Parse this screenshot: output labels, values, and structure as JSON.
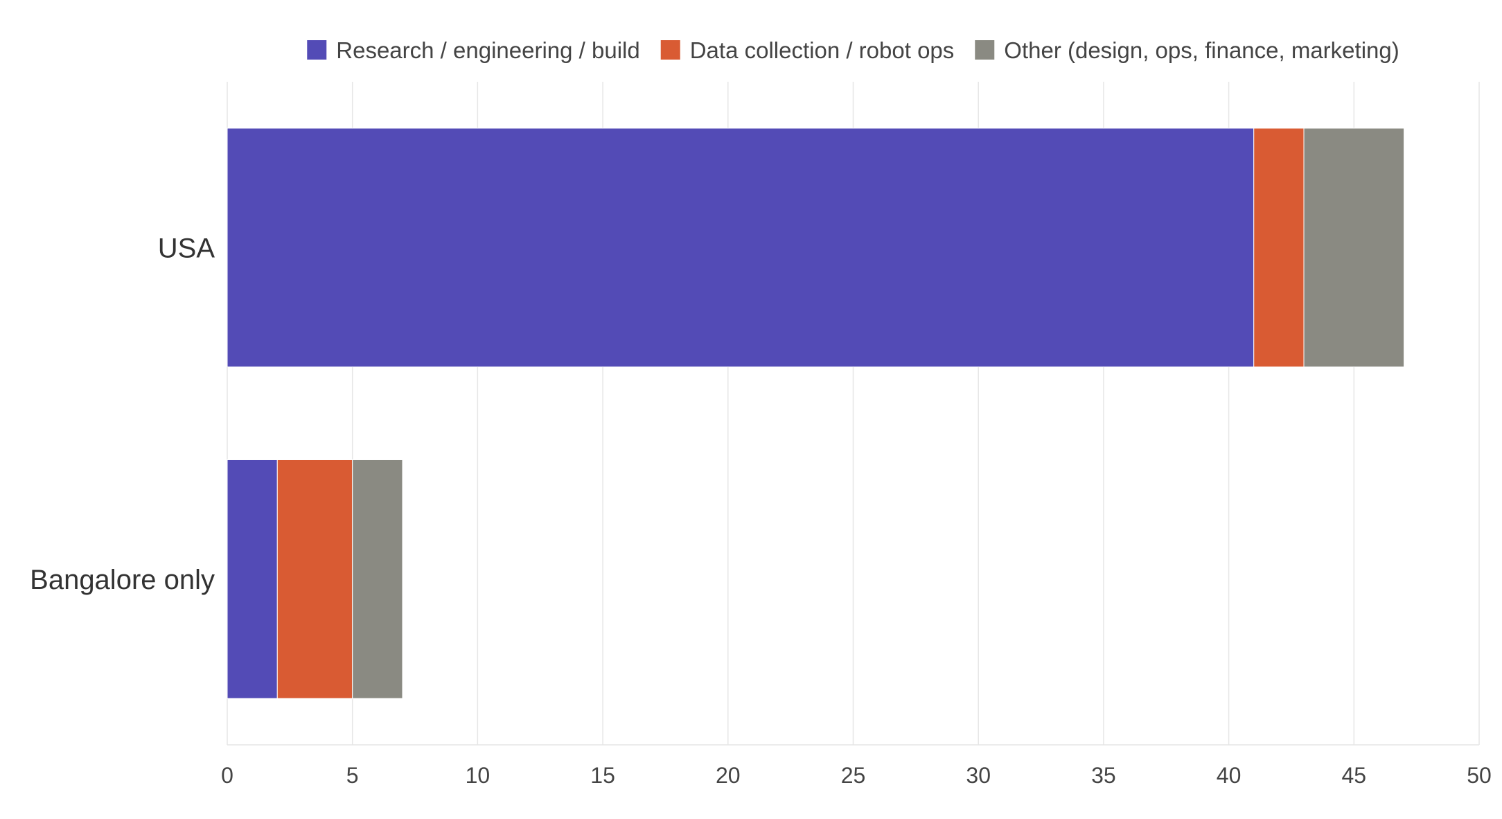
{
  "chart_data": {
    "type": "bar",
    "orientation": "horizontal",
    "stacked": true,
    "title": "",
    "xlabel": "",
    "ylabel": "",
    "categories": [
      "USA",
      "Bangalore only"
    ],
    "series": [
      {
        "name": "Research / engineering / build",
        "color": "#534bb6",
        "values": [
          41,
          2
        ]
      },
      {
        "name": "Data collection / robot ops",
        "color": "#d95b33",
        "values": [
          2,
          3
        ]
      },
      {
        "name": "Other (design, ops, finance, marketing)",
        "color": "#8a8a82",
        "values": [
          4,
          2
        ]
      }
    ],
    "xlim": [
      0,
      50
    ],
    "xticks": [
      0,
      5,
      10,
      15,
      20,
      25,
      30,
      35,
      40,
      45,
      50
    ],
    "grid": true,
    "legend_position": "top"
  }
}
